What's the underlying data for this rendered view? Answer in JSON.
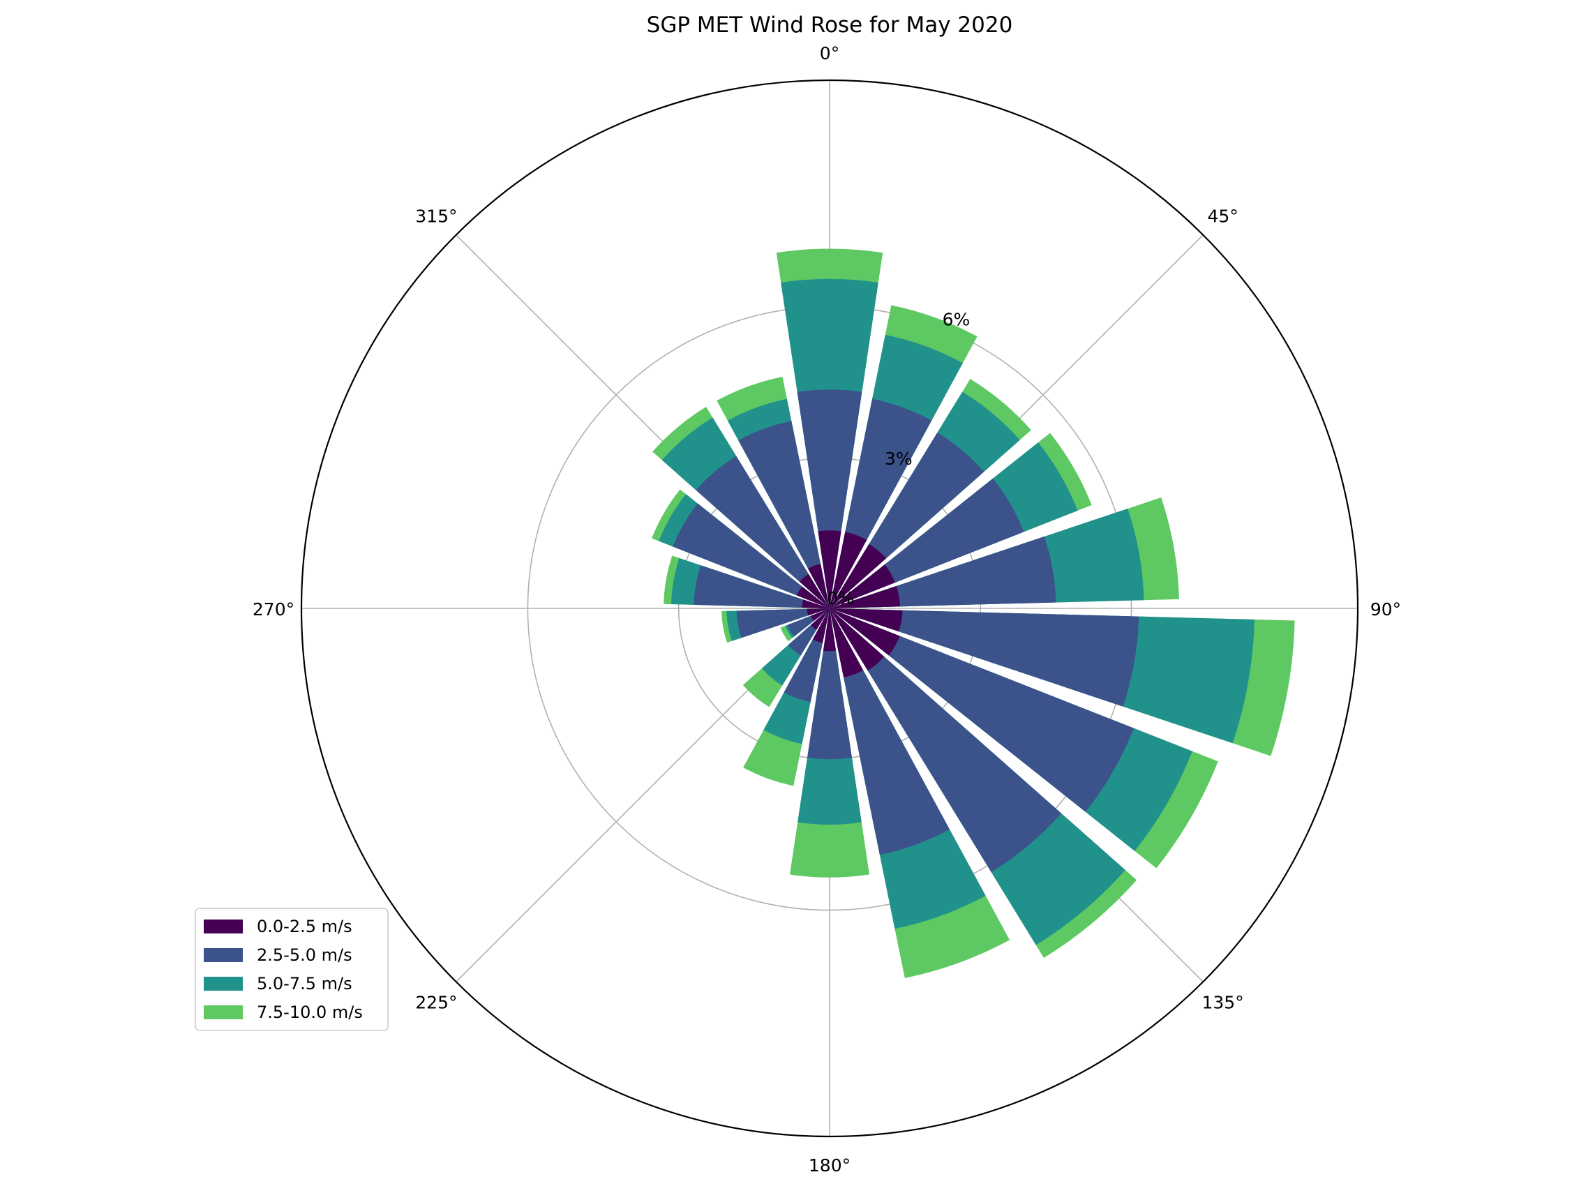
{
  "chart_data": {
    "type": "wind-rose",
    "title": "SGP MET Wind Rose for May 2020",
    "direction_tick_labels": [
      "0°",
      "45°",
      "90°",
      "135°",
      "180°",
      "225°",
      "270°",
      "315°"
    ],
    "radial_tick_labels": [
      "0%",
      "3%",
      "6%"
    ],
    "radial_ticks": [
      0,
      3,
      6
    ],
    "rmax": 10.5,
    "grid": true,
    "legend_placement": "lower-left",
    "bin_width_deg": 20,
    "colors": [
      "#440154",
      "#3b528b",
      "#21918c",
      "#5ec962"
    ],
    "directions": [
      0,
      20,
      40,
      60,
      80,
      100,
      120,
      140,
      160,
      180,
      200,
      220,
      240,
      260,
      280,
      300,
      320,
      340
    ],
    "series": [
      {
        "name": "0.0-2.5 m/s",
        "values": [
          1.55,
          1.55,
          1.5,
          1.4,
          1.4,
          1.45,
          1.5,
          1.45,
          1.4,
          0.85,
          0.7,
          0.5,
          0.4,
          0.45,
          0.55,
          0.7,
          0.8,
          0.9
        ]
      },
      {
        "name": "2.5-5.0 m/s",
        "values": [
          4.35,
          4.25,
          4.1,
          4.15,
          4.5,
          6.15,
          6.5,
          6.15,
          5.0,
          3.0,
          1.9,
          1.1,
          0.9,
          1.85,
          2.7,
          3.35,
          3.55,
          3.8
        ]
      },
      {
        "name": "5.0-7.5 m/s",
        "values": [
          6.55,
          5.55,
          5.05,
          5.3,
          6.25,
          8.45,
          7.75,
          7.85,
          6.5,
          4.3,
          2.75,
          1.8,
          0.95,
          2.05,
          3.15,
          3.65,
          4.45,
          4.25
        ]
      },
      {
        "name": "7.5-10.0 m/s",
        "values": [
          7.15,
          6.15,
          5.35,
          5.6,
          6.95,
          9.25,
          8.3,
          8.15,
          7.5,
          5.35,
          3.6,
          2.3,
          1.05,
          2.15,
          3.3,
          3.8,
          4.7,
          4.7
        ]
      }
    ]
  }
}
